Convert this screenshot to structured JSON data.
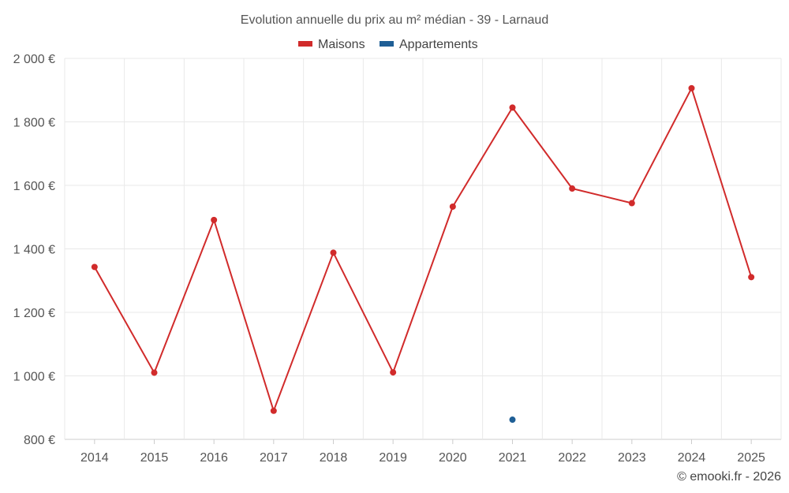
{
  "chart_data": {
    "type": "line",
    "title": "Evolution annuelle du prix au m² médian - 39 - Larnaud",
    "categories": [
      "2014",
      "2015",
      "2016",
      "2017",
      "2018",
      "2019",
      "2020",
      "2021",
      "2022",
      "2023",
      "2024",
      "2025"
    ],
    "series": [
      {
        "name": "Maisons",
        "color": "#d12b2b",
        "values": [
          1343,
          1010,
          1491,
          890,
          1388,
          1011,
          1533,
          1845,
          1590,
          1544,
          1906,
          1311
        ]
      },
      {
        "name": "Appartements",
        "color": "#1f5f96",
        "values": [
          null,
          null,
          null,
          null,
          null,
          null,
          null,
          862,
          null,
          null,
          null,
          null
        ]
      }
    ],
    "ylim": [
      800,
      2000
    ],
    "yticks": [
      800,
      1000,
      1200,
      1400,
      1600,
      1800,
      2000
    ],
    "ytick_labels": [
      "800 €",
      "1 000 €",
      "1 200 €",
      "1 400 €",
      "1 600 €",
      "1 800 €",
      "2 000 €"
    ],
    "xlabel": "",
    "ylabel": "",
    "grid": true,
    "legend_position": "top-center"
  },
  "credit": "© emooki.fr - 2026"
}
